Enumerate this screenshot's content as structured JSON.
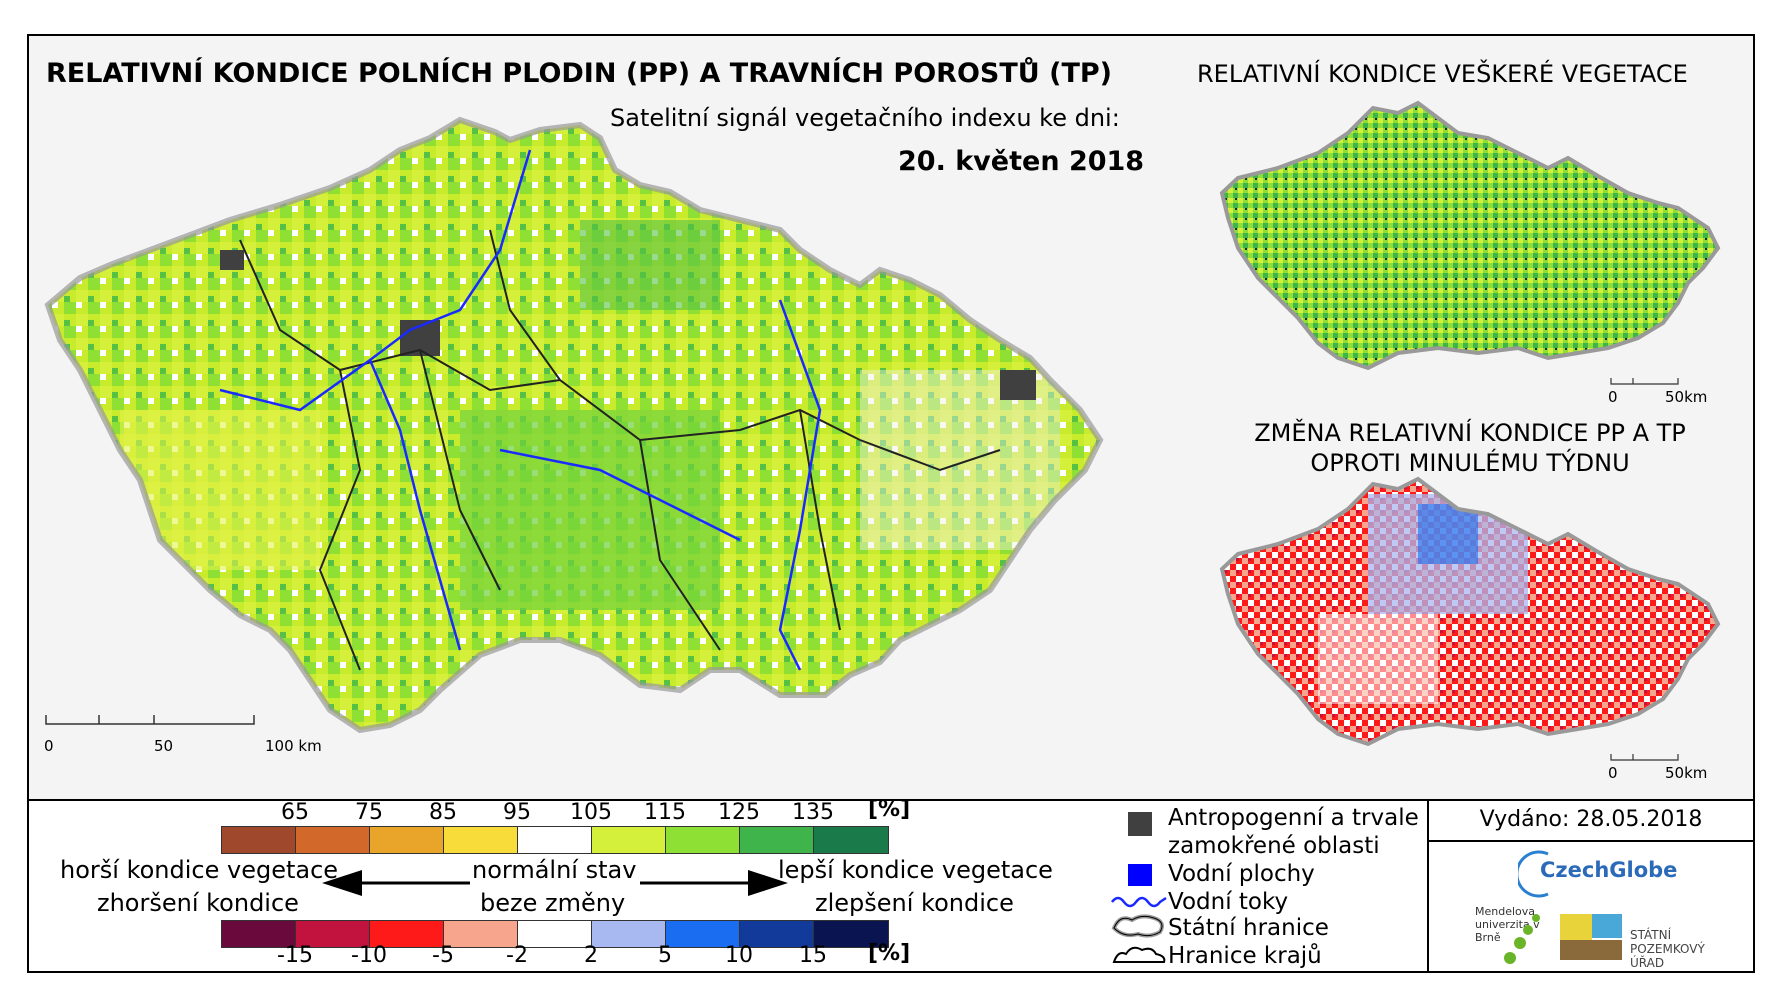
{
  "header": {
    "title": "RELATIVNÍ KONDICE POLNÍCH PLODIN (PP) A TRAVNÍCH POROSTŮ (TP)",
    "subtitle": "Satelitní signál vegetačního indexu ke dni:",
    "date": "20. květen 2018"
  },
  "inset_vegetation": {
    "title": "RELATIVNÍ KONDICE VEŠKERÉ VEGETACE",
    "scale_0": "0",
    "scale_end": "50km"
  },
  "inset_change": {
    "title_line1": "ZMĚNA RELATIVNÍ KONDICE PP A TP",
    "title_line2": "OPROTI MINULÉMU TÝDNU",
    "scale_0": "0",
    "scale_end": "50km"
  },
  "main_map": {
    "scale_0": "0",
    "scale_mid": "50",
    "scale_end": "100 km"
  },
  "condition_scale": {
    "unit": "[%]",
    "ticks": [
      "65",
      "75",
      "85",
      "95",
      "105",
      "115",
      "125",
      "135"
    ],
    "colors": [
      "#a0482c",
      "#d2692b",
      "#e8a52a",
      "#f8dc3a",
      "#ffffff",
      "#d4f03a",
      "#8ee034",
      "#3fb44a",
      "#1a7a4a"
    ]
  },
  "change_scale": {
    "unit": "[%]",
    "ticks": [
      "-15",
      "-10",
      "-5",
      "-2",
      "2",
      "5",
      "10",
      "15"
    ],
    "colors": [
      "#6a0a3c",
      "#c2123e",
      "#ff1a1a",
      "#f7a58c",
      "#ffffff",
      "#a8b8f0",
      "#1a6cf0",
      "#123a9a",
      "#0a1450"
    ]
  },
  "labels": {
    "worse_condition": "horší kondice vegetace",
    "worse_change": "zhoršení kondice",
    "normal_state": "normální stav",
    "no_change": "beze změny",
    "better_condition": "lepší kondice vegetace",
    "better_change": "zlepšení kondice"
  },
  "legend": {
    "items": [
      {
        "label_line1": "Antropogenní a trvale",
        "label_line2": "zamokřené oblasti",
        "icon": "dark-gray-square"
      },
      {
        "label_line1": "Vodní plochy",
        "icon": "blue-square"
      },
      {
        "label_line1": "Vodní toky",
        "icon": "blue-river-line"
      },
      {
        "label_line1": "Státní hranice",
        "icon": "border-outline"
      },
      {
        "label_line1": "Hranice krajů",
        "icon": "region-outline"
      }
    ],
    "colors": {
      "urban": "#404040",
      "water": "#0000ff",
      "river": "#1a2aff"
    }
  },
  "footer": {
    "issued": "Vydáno: 28.05.2018",
    "logo_czechglobe": "CzechGlobe",
    "logo_mendel": "Mendelova univerzita v Brně",
    "logo_spu": "STÁTNÍ POZEMKOVÝ ÚŘAD"
  }
}
